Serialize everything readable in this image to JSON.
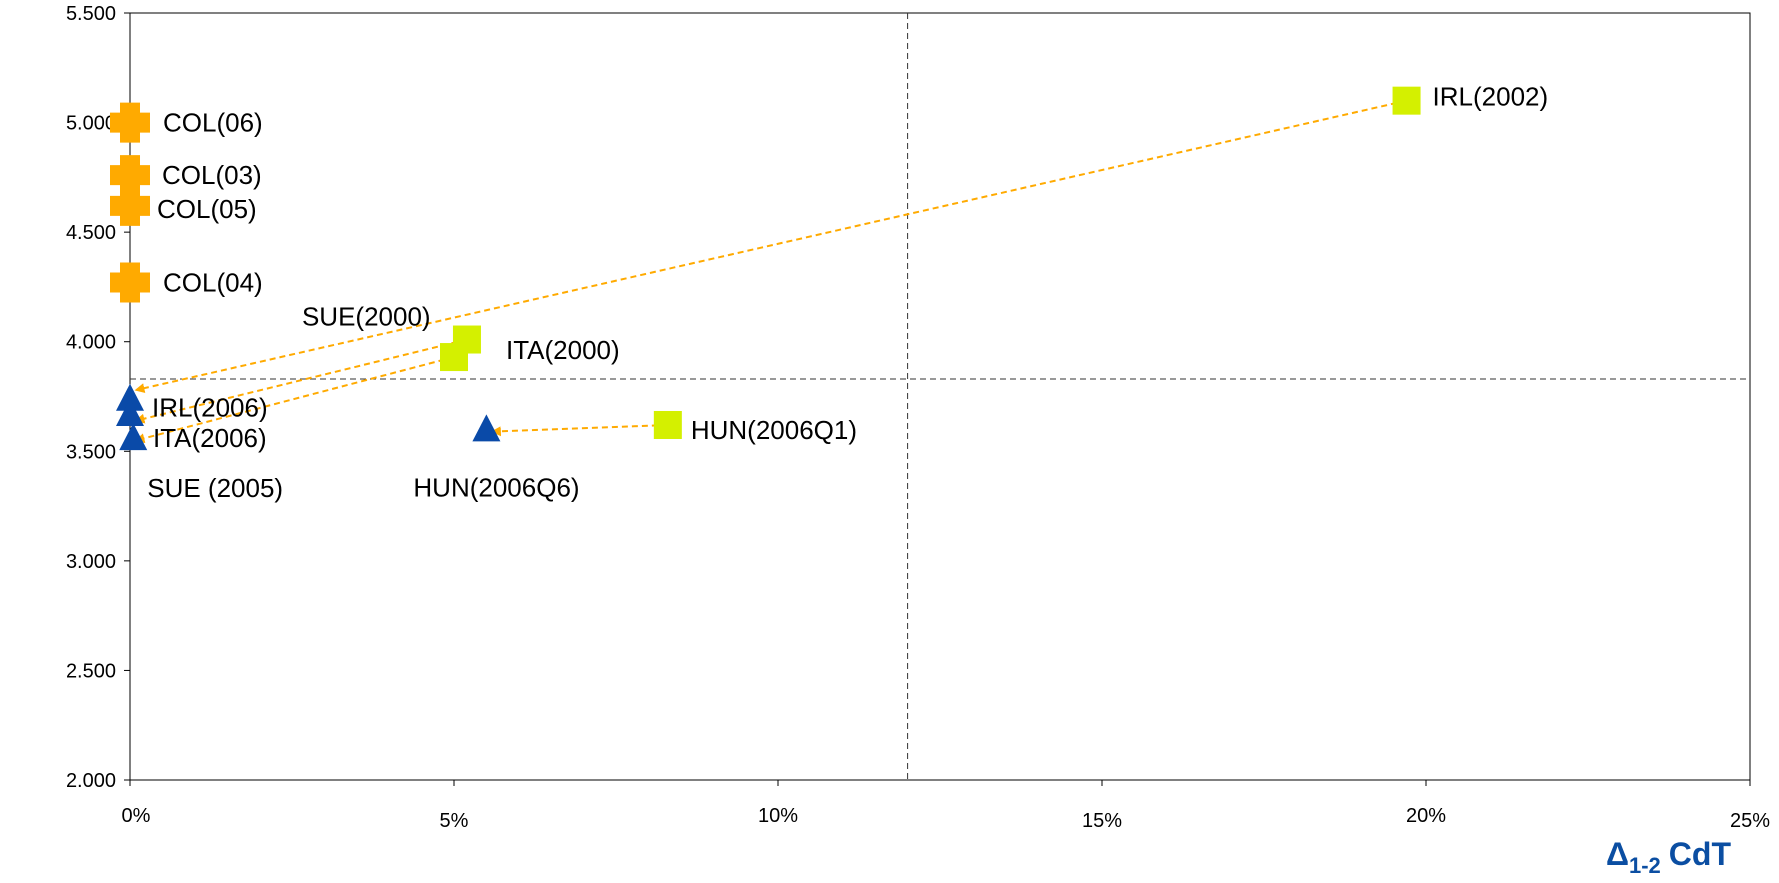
{
  "chart_data": {
    "type": "scatter",
    "title": "",
    "xlabel": {
      "symbol": "Δ",
      "subscript": "1-2",
      "rest": "CdT"
    },
    "ylabel": "",
    "xlim": [
      0,
      25
    ],
    "ylim": [
      2.0,
      5.5
    ],
    "x_ticks": [
      {
        "value": 0,
        "label": "0%"
      },
      {
        "value": 5,
        "label": "5%"
      },
      {
        "value": 10,
        "label": "10%"
      },
      {
        "value": 15,
        "label": "15%"
      },
      {
        "value": 20,
        "label": "20%"
      },
      {
        "value": 25,
        "label": "25%"
      }
    ],
    "y_ticks": [
      {
        "value": 2.0,
        "label": "2.000"
      },
      {
        "value": 2.5,
        "label": "2.500"
      },
      {
        "value": 3.0,
        "label": "3.000"
      },
      {
        "value": 3.5,
        "label": "3.500"
      },
      {
        "value": 4.0,
        "label": "4.000"
      },
      {
        "value": 4.5,
        "label": "4.500"
      },
      {
        "value": 5.0,
        "label": "5.000"
      },
      {
        "value": 5.5,
        "label": "5.500"
      }
    ],
    "reference_lines": {
      "x": 12,
      "y": 3.83
    },
    "colors": {
      "cross": "#ffaa00",
      "square": "#d4f000",
      "triangle": "#0a4aa8",
      "arrow": "#ffaa00",
      "reference": "#333333",
      "axis_title": "#0b4ea2"
    },
    "series": [
      {
        "marker": "cross",
        "points": [
          {
            "label": "COL(06)",
            "x": 0.0,
            "y": 5.0
          },
          {
            "label": "COL(03)",
            "x": 0.0,
            "y": 4.76
          },
          {
            "label": "COL(05)",
            "x": 0.0,
            "y": 4.62
          },
          {
            "label": "COL(04)",
            "x": 0.0,
            "y": 4.27
          }
        ]
      },
      {
        "marker": "square",
        "points": [
          {
            "label": "IRL(2002)",
            "x": 19.7,
            "y": 5.1
          },
          {
            "label": "SUE(2000)",
            "x": 5.2,
            "y": 4.01
          },
          {
            "label": "ITA(2000)",
            "x": 5.0,
            "y": 3.93
          },
          {
            "label": "HUN(2006Q1)",
            "x": 8.3,
            "y": 3.62
          }
        ]
      },
      {
        "marker": "triangle",
        "points": [
          {
            "label": "IRL(2006)",
            "x": 0.0,
            "y": 3.74
          },
          {
            "label": "ITA(2006)",
            "x": 0.0,
            "y": 3.67
          },
          {
            "label": "SUE (2005)",
            "x": 0.05,
            "y": 3.56
          },
          {
            "label": "HUN(2006Q6)",
            "x": 5.5,
            "y": 3.6
          }
        ]
      }
    ],
    "arrows": [
      {
        "from": [
          19.7,
          5.1
        ],
        "to": [
          0.1,
          3.78
        ]
      },
      {
        "from": [
          5.2,
          4.01
        ],
        "to": [
          0.1,
          3.64
        ]
      },
      {
        "from": [
          5.0,
          3.93
        ],
        "to": [
          0.1,
          3.55
        ]
      },
      {
        "from": [
          8.3,
          3.62
        ],
        "to": [
          5.6,
          3.59
        ]
      }
    ]
  }
}
